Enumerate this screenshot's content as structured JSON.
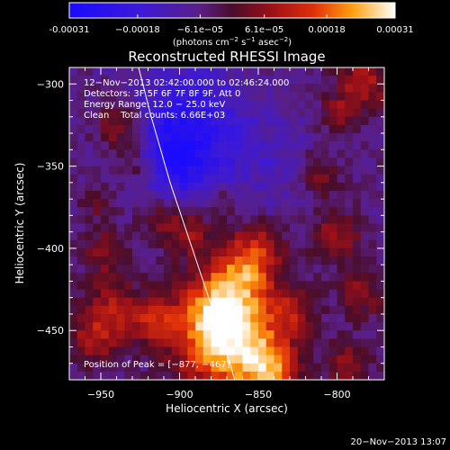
{
  "chart_data": {
    "type": "heatmap",
    "title": "Reconstructed RHESSI Image",
    "xlabel": "Heliocentric X (arcsec)",
    "ylabel": "Heliocentric Y (arcsec)",
    "xlim": [
      -970,
      -770
    ],
    "ylim": [
      -480,
      -290
    ],
    "x_ticks": [
      -950,
      -900,
      -850,
      -800
    ],
    "y_ticks": [
      -300,
      -350,
      -400,
      -450
    ],
    "x_tick_labels": [
      "−950",
      "−900",
      "−850",
      "−800"
    ],
    "y_tick_labels": [
      "−300",
      "−350",
      "−400",
      "−450"
    ],
    "colorbar": {
      "range": [
        -0.00031,
        0.00031
      ],
      "tick_labels": [
        "-0.00031",
        "−0.00018",
        "−6.1e−05",
        "6.1e−05",
        "0.00018",
        "0.00031"
      ],
      "tick_values": [
        -0.00031,
        -0.00018,
        -6.1e-05,
        6.1e-05,
        0.00018,
        0.00031
      ],
      "unit_label": "(photons cm",
      "unit_sup1": "−2",
      "unit_mid": " s",
      "unit_sup2": "−1",
      "unit_mid2": " asec",
      "unit_sup3": "−2",
      "unit_end": ")"
    },
    "annotations": {
      "line1": "12−Nov−2013 02:42:00.000 to 02:46:24.000",
      "line2": "Detectors: 3F 5F 6F 7F 8F 9F, Att 0",
      "line3": "Energy Range: 12.0 − 25.0 keV",
      "line4": "Clean    Total counts: 6.66E+03",
      "peak": "Position of Peak = [−877, −467]"
    },
    "limb_curve": [
      [
        -926,
        -290
      ],
      [
        -918,
        -320
      ],
      [
        -906,
        -360
      ],
      [
        -892,
        -400
      ],
      [
        -878,
        -440
      ],
      [
        -868,
        -470
      ],
      [
        -865,
        -480
      ]
    ],
    "blobs": [
      {
        "x": -866,
        "y": -458,
        "sigma": 24,
        "amp": 1.0
      },
      {
        "x": -880,
        "y": -440,
        "sigma": 16,
        "amp": 0.55
      },
      {
        "x": -862,
        "y": -418,
        "sigma": 14,
        "amp": 0.6
      },
      {
        "x": -850,
        "y": -400,
        "sigma": 12,
        "amp": 0.45
      },
      {
        "x": -843,
        "y": -473,
        "sigma": 12,
        "amp": 0.55
      },
      {
        "x": -893,
        "y": -390,
        "sigma": 11,
        "amp": 0.4
      },
      {
        "x": -912,
        "y": -378,
        "sigma": 11,
        "amp": 0.4
      },
      {
        "x": -937,
        "y": -325,
        "sigma": 11,
        "amp": 0.5
      },
      {
        "x": -928,
        "y": -350,
        "sigma": 9,
        "amp": 0.4
      },
      {
        "x": -948,
        "y": -402,
        "sigma": 10,
        "amp": 0.35
      },
      {
        "x": -942,
        "y": -440,
        "sigma": 14,
        "amp": 0.55
      },
      {
        "x": -915,
        "y": -445,
        "sigma": 9,
        "amp": 0.45
      },
      {
        "x": -957,
        "y": -458,
        "sigma": 9,
        "amp": 0.4
      },
      {
        "x": -812,
        "y": -355,
        "sigma": 10,
        "amp": 0.35
      },
      {
        "x": -800,
        "y": -393,
        "sigma": 11,
        "amp": 0.45
      },
      {
        "x": -784,
        "y": -428,
        "sigma": 10,
        "amp": 0.4
      },
      {
        "x": -793,
        "y": -470,
        "sigma": 10,
        "amp": 0.4
      },
      {
        "x": -783,
        "y": -300,
        "sigma": 12,
        "amp": 0.5
      },
      {
        "x": -800,
        "y": -318,
        "sigma": 8,
        "amp": 0.35
      },
      {
        "x": -828,
        "y": -438,
        "sigma": 9,
        "amp": 0.35
      },
      {
        "x": -870,
        "y": -372,
        "sigma": 7,
        "amp": 0.25
      },
      {
        "x": -952,
        "y": -372,
        "sigma": 7,
        "amp": 0.3
      },
      {
        "x": -895,
        "y": -325,
        "sigma": 25,
        "amp": -0.6
      },
      {
        "x": -905,
        "y": -355,
        "sigma": 18,
        "amp": -0.4
      },
      {
        "x": -840,
        "y": -350,
        "sigma": 20,
        "amp": -0.2
      }
    ],
    "baseline": -0.2
  },
  "footer": {
    "date": "20−Nov−2013 13:07"
  }
}
